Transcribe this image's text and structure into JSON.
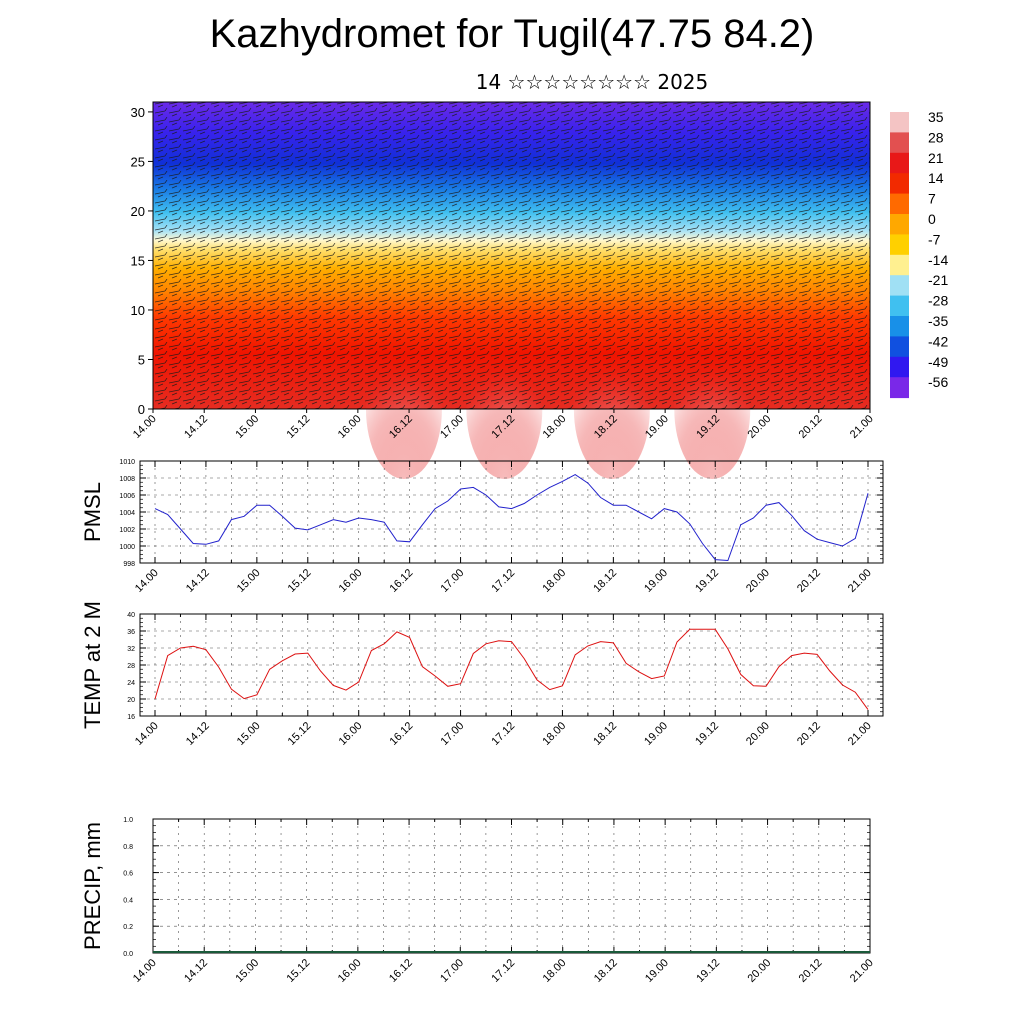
{
  "header": {
    "title": "Kazhydromet for Tugil(47.75 84.2)",
    "subtitle": "14 ☆☆☆☆☆☆☆☆ 2025"
  },
  "colors": {
    "pmsl_line": "#2222cc",
    "temp_line": "#dd1111",
    "grid": "#555555"
  },
  "chart_data": [
    {
      "type": "heatmap",
      "title": "",
      "x_tick_labels": [
        "14.00",
        "14.12",
        "15.00",
        "15.12",
        "16.00",
        "16.12",
        "17.00",
        "17.12",
        "18.00",
        "18.12",
        "19.00",
        "19.12",
        "20.00",
        "20.12",
        "21.00"
      ],
      "y_ticks": [
        0,
        5,
        10,
        15,
        20,
        25,
        30
      ],
      "ylim": [
        0,
        31
      ],
      "colorbar_labels": [
        "35",
        "28",
        "21",
        "14",
        "7",
        "0",
        "-7",
        "-14",
        "-21",
        "-28",
        "-35",
        "-42",
        "-49",
        "-56"
      ],
      "colorbar_colors": [
        "#f4c4c4",
        "#e25050",
        "#e81818",
        "#f22a00",
        "#ff6a00",
        "#ffa800",
        "#ffd000",
        "#fff090",
        "#a0e0f4",
        "#40c0f0",
        "#1890e8",
        "#1050e0",
        "#3018f0",
        "#7a28e8"
      ],
      "overlay": "wind barbs"
    },
    {
      "type": "line",
      "ylabel": "PMSL",
      "ylim": [
        998,
        1010
      ],
      "y_ticks": [
        998,
        1000,
        1002,
        1004,
        1006,
        1008,
        1010
      ],
      "x_tick_labels": [
        "14.00",
        "14.12",
        "15.00",
        "15.12",
        "16.00",
        "16.12",
        "17.00",
        "17.12",
        "18.00",
        "18.12",
        "19.00",
        "19.12",
        "20.00",
        "20.12",
        "21.00"
      ],
      "x_hours": [
        0,
        3,
        6,
        9,
        12,
        15,
        18,
        21,
        24,
        27,
        30,
        33,
        36,
        39,
        42,
        45,
        48,
        51,
        54,
        57,
        60,
        63,
        66,
        69,
        72,
        75,
        78,
        81,
        84,
        87,
        90,
        93,
        96,
        99,
        102,
        105,
        108,
        111,
        114,
        117,
        120,
        123,
        126,
        129,
        132,
        135,
        138,
        141,
        144,
        147,
        150,
        153,
        156,
        159,
        162,
        165,
        168
      ],
      "series": [
        {
          "name": "",
          "values": [
            1004.4,
            1003.7,
            1002.0,
            1000.3,
            1000.2,
            1000.6,
            1003.1,
            1003.5,
            1004.8,
            1004.8,
            1003.5,
            1002.1,
            1001.9,
            1002.5,
            1003.1,
            1002.8,
            1003.3,
            1003.1,
            1002.8,
            1000.6,
            1000.5,
            1002.5,
            1004.4,
            1005.3,
            1006.7,
            1006.9,
            1006.0,
            1004.6,
            1004.4,
            1005.0,
            1006.0,
            1006.9,
            1007.6,
            1008.4,
            1007.4,
            1005.7,
            1004.8,
            1004.8,
            1004.0,
            1003.2,
            1004.4,
            1004.0,
            1002.6,
            1000.3,
            998.4,
            998.3,
            1002.5,
            1003.3,
            1004.8,
            1005.1,
            1003.6,
            1001.8,
            1000.8,
            1000.4,
            1000.0,
            1000.9,
            1006.2
          ]
        }
      ]
    },
    {
      "type": "line",
      "ylabel": "TEMP at 2 M",
      "ylim": [
        16,
        40
      ],
      "y_ticks": [
        16,
        20,
        24,
        28,
        32,
        36,
        40
      ],
      "x_tick_labels": [
        "14.00",
        "14.12",
        "15.00",
        "15.12",
        "16.00",
        "16.12",
        "17.00",
        "17.12",
        "18.00",
        "18.12",
        "19.00",
        "19.12",
        "20.00",
        "20.12",
        "21.00"
      ],
      "x_hours": [
        0,
        3,
        6,
        9,
        12,
        15,
        18,
        21,
        24,
        27,
        30,
        33,
        36,
        39,
        42,
        45,
        48,
        51,
        54,
        57,
        60,
        63,
        66,
        69,
        72,
        75,
        78,
        81,
        84,
        87,
        90,
        93,
        96,
        99,
        102,
        105,
        108,
        111,
        114,
        117,
        120,
        123,
        126,
        129,
        132,
        135,
        138,
        141,
        144,
        147,
        150,
        153,
        156,
        159,
        162,
        165,
        168
      ],
      "series": [
        {
          "name": "",
          "values": [
            20.0,
            30.2,
            32.0,
            32.4,
            31.6,
            27.5,
            22.3,
            20.1,
            21.0,
            27.0,
            29.0,
            30.6,
            30.8,
            26.6,
            23.2,
            22.1,
            24.0,
            31.4,
            33.0,
            35.8,
            34.5,
            27.6,
            25.4,
            23.0,
            23.6,
            30.7,
            33.0,
            33.7,
            33.5,
            29.5,
            24.5,
            22.2,
            23.1,
            30.4,
            32.5,
            33.5,
            33.2,
            28.4,
            26.4,
            24.8,
            25.4,
            33.4,
            36.4,
            36.4,
            36.4,
            31.8,
            25.8,
            23.1,
            23.0,
            27.6,
            30.2,
            30.8,
            30.5,
            26.6,
            23.3,
            21.6,
            17.5
          ]
        }
      ]
    },
    {
      "type": "line",
      "ylabel": "PRECIP, mm",
      "ylim": [
        0.0,
        1.0
      ],
      "y_tick_labels": [
        "0.0",
        "0.2",
        "0.4",
        "0.6",
        "0.8",
        "1.0"
      ],
      "x_tick_labels": [
        "14.00",
        "14.12",
        "15.00",
        "15.12",
        "16.00",
        "16.12",
        "17.00",
        "17.12",
        "18.00",
        "18.12",
        "19.00",
        "19.12",
        "20.00",
        "20.12",
        "21.00"
      ],
      "series": [
        {
          "name": "",
          "values": [
            0,
            0
          ]
        }
      ]
    }
  ]
}
